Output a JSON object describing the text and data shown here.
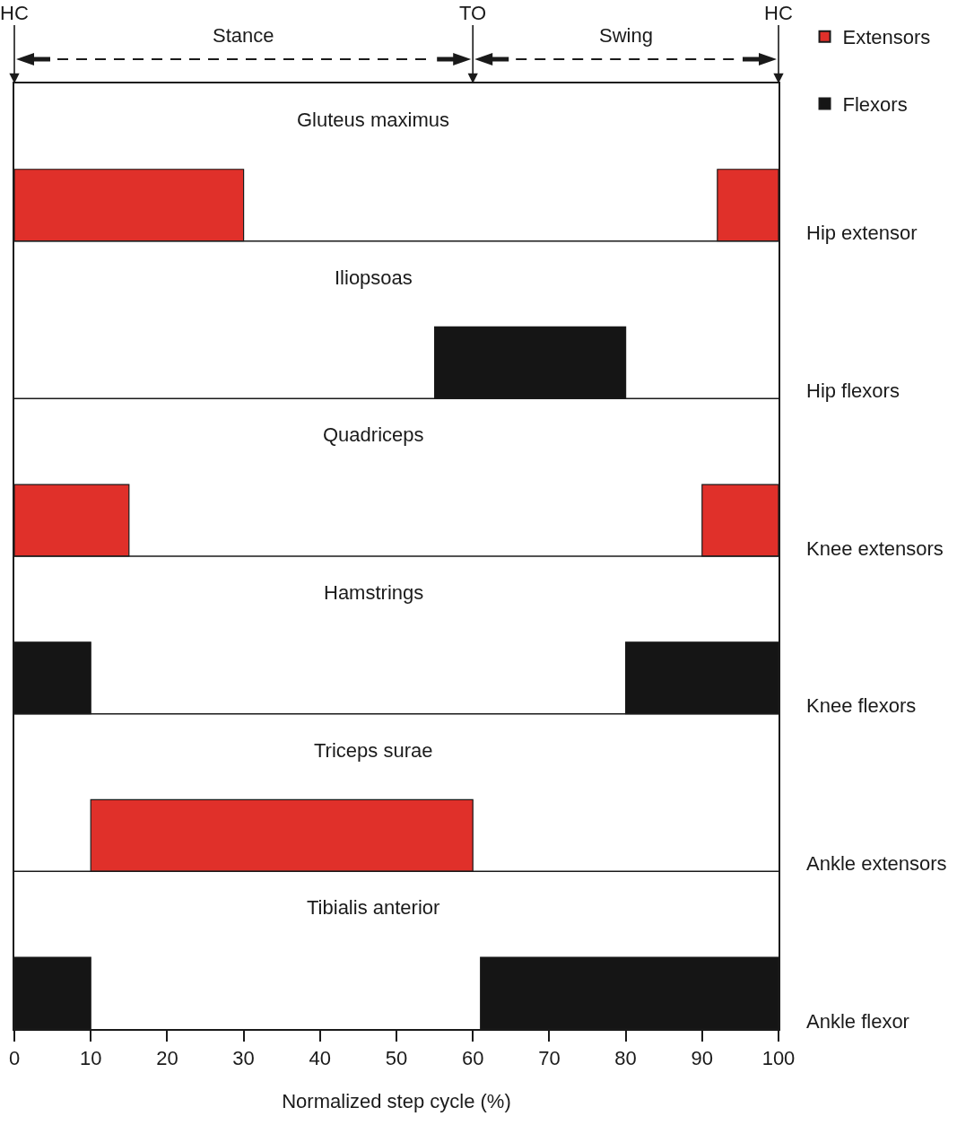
{
  "chart_data": {
    "type": "bar",
    "orientation": "horizontal",
    "categories": [
      "Gluteus maximus",
      "Iliopsoas",
      "Quadriceps",
      "Hamstrings",
      "Triceps surae",
      "Tibialis anterior"
    ],
    "series": [
      {
        "name": "Extensors",
        "color": "#e0302a",
        "base": [
          0,
          null,
          0,
          null,
          10,
          null
        ],
        "values": [
          30,
          null,
          15,
          null,
          50,
          null
        ]
      },
      {
        "color": "#e0302a",
        "base": [
          92,
          null,
          90,
          null,
          null,
          null
        ],
        "values": [
          8,
          null,
          10,
          null,
          null,
          null
        ]
      },
      {
        "name": "Flexors",
        "color": "#151515",
        "base": [
          null,
          55,
          null,
          0,
          null,
          0
        ],
        "values": [
          null,
          25,
          null,
          10,
          null,
          10
        ]
      },
      {
        "color": "#151515",
        "base": [
          null,
          null,
          null,
          80,
          null,
          61
        ],
        "values": [
          null,
          null,
          null,
          20,
          null,
          39
        ]
      }
    ],
    "xlim": [
      0,
      100
    ],
    "xticks": [
      0,
      10,
      20,
      30,
      40,
      50,
      60,
      70,
      80,
      90,
      100
    ],
    "xlabel": "Normalized step cycle (%)",
    "ref_lines": [
      {
        "axis": "x",
        "value": 0,
        "label": "HC"
      },
      {
        "axis": "x",
        "value": 60,
        "label": "TO"
      },
      {
        "axis": "x",
        "value": 100,
        "label": "HC"
      }
    ],
    "annotations": [
      "Stance",
      "Swing",
      "Hip extensor",
      "Hip flexors",
      "Knee extensors",
      "Knee flexors",
      "Ankle extensors",
      "Ankle flexor"
    ],
    "legend": "top right"
  }
}
